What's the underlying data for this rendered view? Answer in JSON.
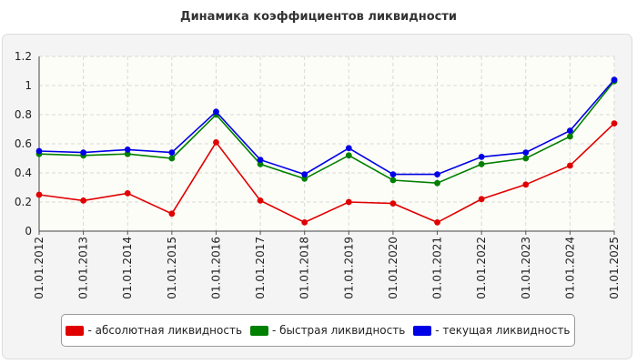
{
  "chart_data": {
    "type": "line",
    "title": "Динамика коэффициентов ликвидности",
    "xlabel": "",
    "ylabel": "",
    "ylim": [
      0,
      1.2
    ],
    "yticks": [
      "0",
      "0.2",
      "0.4",
      "0.6",
      "0.8",
      "1",
      "1.2"
    ],
    "grid": true,
    "legend_position": "bottom",
    "categories": [
      "01.01.2012",
      "01.01.2013",
      "01.01.2014",
      "01.01.2015",
      "01.01.2016",
      "01.01.2017",
      "01.01.2018",
      "01.01.2019",
      "01.01.2020",
      "01.01.2021",
      "01.01.2022",
      "01.01.2023",
      "01.01.2024",
      "01.01.2025"
    ],
    "series": [
      {
        "name": "- абсолютная ликвидность",
        "color": "#e00000",
        "values": [
          0.25,
          0.21,
          0.26,
          0.12,
          0.61,
          0.21,
          0.06,
          0.2,
          0.19,
          0.06,
          0.22,
          0.32,
          0.45,
          0.74
        ]
      },
      {
        "name": "- быстрая ликвидность",
        "color": "#008000",
        "values": [
          0.53,
          0.52,
          0.53,
          0.5,
          0.8,
          0.46,
          0.36,
          0.52,
          0.35,
          0.33,
          0.46,
          0.5,
          0.65,
          1.03
        ]
      },
      {
        "name": "- текущая ликвидность",
        "color": "#0000e6",
        "values": [
          0.55,
          0.54,
          0.56,
          0.54,
          0.82,
          0.49,
          0.39,
          0.57,
          0.39,
          0.39,
          0.51,
          0.54,
          0.69,
          1.04
        ]
      }
    ]
  }
}
